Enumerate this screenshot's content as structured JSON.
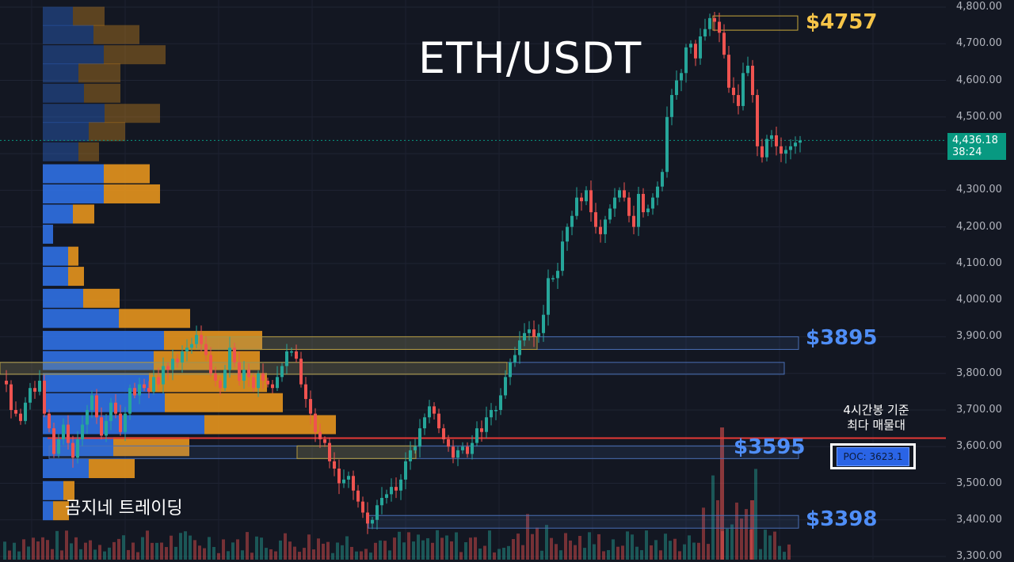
{
  "chart_data": {
    "type": "candlestick",
    "title": "ETH/USDT",
    "y_axis": {
      "ticks": [
        "4,800.00",
        "4,700.00",
        "4,600.00",
        "4,500.00",
        "4,400.00",
        "4,300.00",
        "4,200.00",
        "4,100.00",
        "4,000.00",
        "3,900.00",
        "3,800.00",
        "3,700.00",
        "3,600.00",
        "3,500.00",
        "3,400.00",
        "3,300.00"
      ],
      "range": [
        3300,
        4800
      ]
    },
    "current_price": {
      "value": "4,436.18",
      "countdown": "38:24"
    },
    "levels": [
      {
        "label": "$4757",
        "price": 4757,
        "color": "#f7c548"
      },
      {
        "label": "$3895",
        "price": 3895,
        "color": "#4f8ef7"
      },
      {
        "label": "$3595",
        "price": 3595,
        "color": "#4f8ef7"
      },
      {
        "label": "$3398",
        "price": 3398,
        "color": "#4f8ef7"
      }
    ],
    "poc": {
      "label": "POC: 3623.1",
      "price": 3623.1,
      "note": [
        "4시간봉 기준",
        "최다 매물대"
      ]
    },
    "close_path": [
      [
        0,
        3780
      ],
      [
        6,
        3770
      ],
      [
        12,
        3700
      ],
      [
        18,
        3690
      ],
      [
        24,
        3670
      ],
      [
        30,
        3720
      ],
      [
        36,
        3760
      ],
      [
        42,
        3750
      ],
      [
        48,
        3780
      ],
      [
        54,
        3690
      ],
      [
        60,
        3650
      ],
      [
        66,
        3580
      ],
      [
        72,
        3620
      ],
      [
        78,
        3660
      ],
      [
        84,
        3610
      ],
      [
        90,
        3570
      ],
      [
        96,
        3620
      ],
      [
        102,
        3660
      ],
      [
        108,
        3700
      ],
      [
        114,
        3740
      ],
      [
        120,
        3680
      ],
      [
        126,
        3630
      ],
      [
        132,
        3670
      ],
      [
        138,
        3720
      ],
      [
        144,
        3690
      ],
      [
        150,
        3640
      ],
      [
        156,
        3690
      ],
      [
        162,
        3760
      ],
      [
        168,
        3740
      ],
      [
        174,
        3770
      ],
      [
        180,
        3760
      ],
      [
        186,
        3750
      ],
      [
        192,
        3790
      ],
      [
        198,
        3770
      ],
      [
        204,
        3820
      ],
      [
        210,
        3810
      ],
      [
        216,
        3840
      ],
      [
        222,
        3830
      ],
      [
        228,
        3860
      ],
      [
        234,
        3870
      ],
      [
        240,
        3880
      ],
      [
        246,
        3905
      ],
      [
        252,
        3880
      ],
      [
        258,
        3850
      ],
      [
        264,
        3800
      ],
      [
        270,
        3780
      ],
      [
        276,
        3760
      ],
      [
        282,
        3810
      ],
      [
        288,
        3870
      ],
      [
        294,
        3830
      ],
      [
        300,
        3780
      ],
      [
        306,
        3810
      ],
      [
        312,
        3790
      ],
      [
        318,
        3760
      ],
      [
        324,
        3800
      ],
      [
        330,
        3780
      ],
      [
        336,
        3770
      ],
      [
        342,
        3760
      ],
      [
        348,
        3790
      ],
      [
        354,
        3820
      ],
      [
        360,
        3860
      ],
      [
        366,
        3860
      ],
      [
        372,
        3840
      ],
      [
        378,
        3770
      ],
      [
        384,
        3730
      ],
      [
        390,
        3690
      ],
      [
        396,
        3640
      ],
      [
        402,
        3620
      ],
      [
        408,
        3610
      ],
      [
        414,
        3560
      ],
      [
        420,
        3540
      ],
      [
        426,
        3500
      ],
      [
        432,
        3510
      ],
      [
        438,
        3520
      ],
      [
        444,
        3480
      ],
      [
        450,
        3450
      ],
      [
        456,
        3420
      ],
      [
        462,
        3390
      ],
      [
        468,
        3400
      ],
      [
        474,
        3440
      ],
      [
        480,
        3460
      ],
      [
        486,
        3470
      ],
      [
        492,
        3490
      ],
      [
        498,
        3480
      ],
      [
        504,
        3510
      ],
      [
        510,
        3560
      ],
      [
        516,
        3590
      ],
      [
        522,
        3600
      ],
      [
        528,
        3650
      ],
      [
        534,
        3680
      ],
      [
        540,
        3710
      ],
      [
        546,
        3690
      ],
      [
        552,
        3650
      ],
      [
        558,
        3620
      ],
      [
        564,
        3600
      ],
      [
        570,
        3570
      ],
      [
        576,
        3590
      ],
      [
        582,
        3600
      ],
      [
        588,
        3580
      ],
      [
        594,
        3610
      ],
      [
        600,
        3650
      ],
      [
        606,
        3640
      ],
      [
        612,
        3680
      ],
      [
        618,
        3700
      ],
      [
        624,
        3700
      ],
      [
        630,
        3740
      ],
      [
        636,
        3790
      ],
      [
        642,
        3830
      ],
      [
        648,
        3850
      ],
      [
        654,
        3890
      ],
      [
        660,
        3910
      ],
      [
        666,
        3920
      ],
      [
        672,
        3900
      ],
      [
        678,
        3910
      ],
      [
        684,
        3960
      ],
      [
        690,
        4060
      ],
      [
        696,
        4060
      ],
      [
        702,
        4080
      ],
      [
        708,
        4160
      ],
      [
        714,
        4200
      ],
      [
        720,
        4230
      ],
      [
        726,
        4280
      ],
      [
        732,
        4270
      ],
      [
        738,
        4300
      ],
      [
        744,
        4240
      ],
      [
        750,
        4200
      ],
      [
        756,
        4180
      ],
      [
        762,
        4220
      ],
      [
        768,
        4250
      ],
      [
        774,
        4280
      ],
      [
        780,
        4300
      ],
      [
        786,
        4280
      ],
      [
        792,
        4230
      ],
      [
        798,
        4200
      ],
      [
        804,
        4290
      ],
      [
        810,
        4240
      ],
      [
        816,
        4250
      ],
      [
        822,
        4280
      ],
      [
        828,
        4310
      ],
      [
        834,
        4350
      ],
      [
        840,
        4500
      ],
      [
        846,
        4560
      ],
      [
        852,
        4600
      ],
      [
        858,
        4620
      ],
      [
        864,
        4690
      ],
      [
        870,
        4700
      ],
      [
        876,
        4660
      ],
      [
        882,
        4720
      ],
      [
        888,
        4740
      ],
      [
        894,
        4770
      ],
      [
        900,
        4760
      ],
      [
        906,
        4730
      ],
      [
        912,
        4670
      ],
      [
        918,
        4580
      ],
      [
        924,
        4560
      ],
      [
        930,
        4530
      ],
      [
        936,
        4620
      ],
      [
        942,
        4640
      ],
      [
        948,
        4560
      ],
      [
        954,
        4420
      ],
      [
        960,
        4390
      ],
      [
        966,
        4440
      ],
      [
        972,
        4450
      ],
      [
        978,
        4420
      ],
      [
        984,
        4400
      ],
      [
        990,
        4410
      ],
      [
        996,
        4420
      ],
      [
        1002,
        4430
      ],
      [
        1008,
        4436
      ]
    ],
    "volume_profile": [
      {
        "price": 4775,
        "buy": 38,
        "sell": 40
      },
      {
        "price": 4725,
        "buy": 64,
        "sell": 58
      },
      {
        "price": 4670,
        "buy": 77,
        "sell": 78
      },
      {
        "price": 4620,
        "buy": 45,
        "sell": 53
      },
      {
        "price": 4565,
        "buy": 52,
        "sell": 46
      },
      {
        "price": 4510,
        "buy": 78,
        "sell": 70
      },
      {
        "price": 4460,
        "buy": 58,
        "sell": 46
      },
      {
        "price": 4405,
        "buy": 45,
        "sell": 26
      },
      {
        "price": 4345,
        "buy": 77,
        "sell": 58
      },
      {
        "price": 4290,
        "buy": 77,
        "sell": 71
      },
      {
        "price": 4235,
        "buy": 38,
        "sell": 27
      },
      {
        "price": 4180,
        "buy": 13,
        "sell": 0
      },
      {
        "price": 4120,
        "buy": 32,
        "sell": 13
      },
      {
        "price": 4065,
        "buy": 32,
        "sell": 20
      },
      {
        "price": 4005,
        "buy": 51,
        "sell": 46
      },
      {
        "price": 3950,
        "buy": 96,
        "sell": 90
      },
      {
        "price": 3890,
        "buy": 153,
        "sell": 124
      },
      {
        "price": 3835,
        "buy": 140,
        "sell": 134
      },
      {
        "price": 3775,
        "buy": 134,
        "sell": 149
      },
      {
        "price": 3720,
        "buy": 154,
        "sell": 149
      },
      {
        "price": 3660,
        "buy": 204,
        "sell": 166
      },
      {
        "price": 3600,
        "buy": 89,
        "sell": 96
      },
      {
        "price": 3540,
        "buy": 58,
        "sell": 58
      },
      {
        "price": 3480,
        "buy": 26,
        "sell": 14
      },
      {
        "price": 3425,
        "buy": 13,
        "sell": 20
      }
    ]
  },
  "watermark": "곰지네 트레이딩",
  "colors": {
    "bull": "#26a69a",
    "bear": "#ef5350",
    "profile_buy": "#2f6fe0",
    "profile_sell": "#e5941d",
    "level_line": "#e53935"
  }
}
